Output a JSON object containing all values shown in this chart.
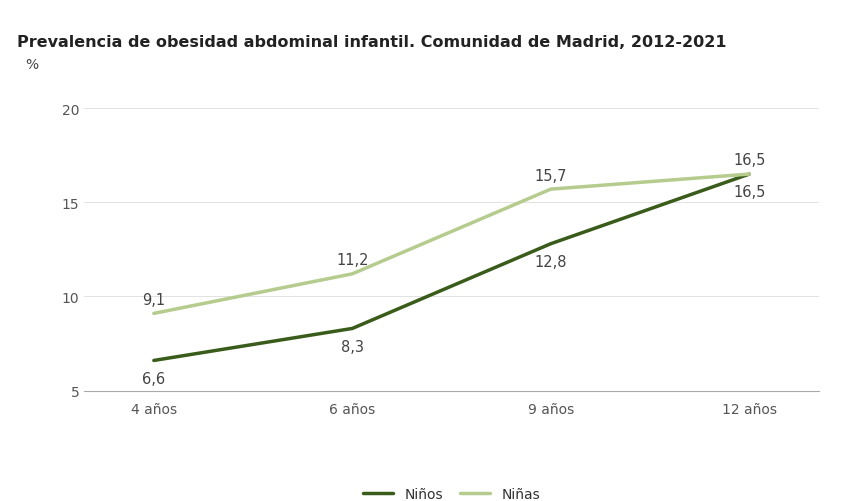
{
  "title": "Prevalencia de obesidad abdominal infantil. Comunidad de Madrid, 2012-2021",
  "ylabel": "%",
  "categories": [
    "4 años",
    "6 años",
    "9 años",
    "12 años"
  ],
  "ninos": [
    6.6,
    8.3,
    12.8,
    16.5
  ],
  "ninas": [
    9.1,
    11.2,
    15.7,
    16.5
  ],
  "ninos_color": "#3a5c1a",
  "ninas_color": "#b5cc8e",
  "ylim": [
    5,
    21
  ],
  "yticks": [
    5,
    10,
    15,
    20
  ],
  "legend_labels": [
    "Niños",
    "Niñas"
  ],
  "bg_color": "#ffffff",
  "linewidth": 2.5,
  "title_fontsize": 11.5,
  "label_fontsize": 10,
  "tick_fontsize": 10,
  "annotation_fontsize": 10.5
}
